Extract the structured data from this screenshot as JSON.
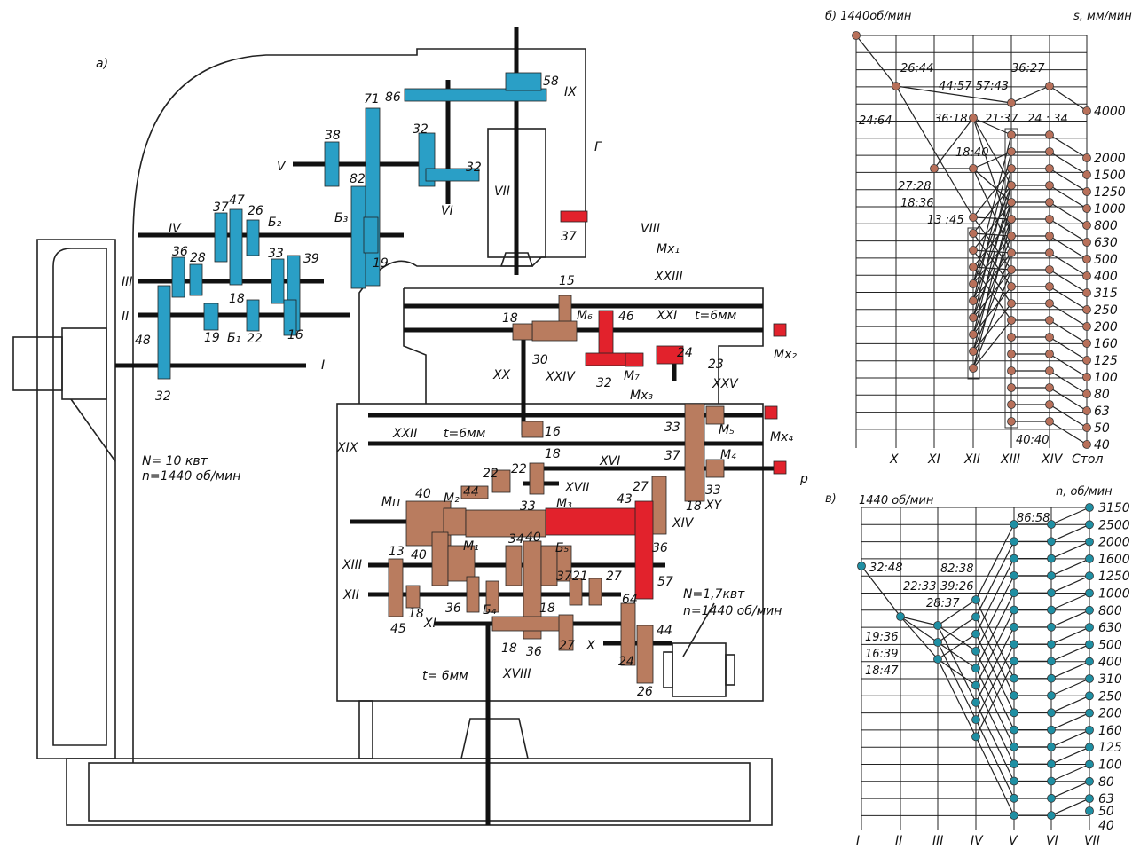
{
  "colors": {
    "spindle_drive": "#2a9fc6",
    "feed_drive": "#b97c5f",
    "rapid_traverse": "#e2222c",
    "lines": "#111111"
  },
  "scheme_labels": [
    "а)",
    "86",
    "58",
    "71",
    "38",
    "32",
    "32",
    "V",
    "82",
    "VI",
    "VII",
    "IX",
    "Г",
    "VIII",
    "37",
    "Mx₁",
    "IV",
    "37",
    "47",
    "26",
    "Б₂",
    "Б₃",
    "19",
    "36",
    "28",
    "33",
    "39",
    "III",
    "18",
    "II",
    "19",
    "Б₁",
    "22",
    "16",
    "48",
    "32",
    "I",
    "N= 10 квт",
    "n=1440 об/мин",
    "XXIII",
    "15",
    "18",
    "M₆",
    "46",
    "XXI",
    "t=6мм",
    "30",
    "XXIV",
    "24",
    "23",
    "32",
    "M₇",
    "XX",
    "XXV",
    "Mx₃",
    "Mx₂",
    "XXII",
    "t=6мм",
    "16",
    "XIX",
    "18",
    "33",
    "M₅",
    "Mx₄",
    "XVI",
    "37",
    "M₄",
    "22",
    "22",
    "XVII",
    "44",
    "27",
    "33",
    "p",
    "40",
    "M₂",
    "Mп",
    "33",
    "M₃",
    "43",
    "18",
    "XY",
    "XIV",
    "34",
    "40",
    "Б₅",
    "36",
    "13",
    "40",
    "M₁",
    "XIII",
    "37",
    "21",
    "27",
    "57",
    "N=1,7квт",
    "n=1440 об/мин",
    "XII",
    "64",
    "18",
    "36",
    "Б₄",
    "18",
    "XI",
    "45",
    "X",
    "44",
    "18",
    "36",
    "27",
    "24",
    "t= 6мм",
    "XVIII",
    "26"
  ],
  "feed_chart": {
    "title": "б) 1440об/мин",
    "unit": "s, мм/мин",
    "shafts": [
      "X",
      "XI",
      "XII",
      "XIII",
      "XIV",
      "Стол"
    ],
    "values": [
      "4000",
      "2000",
      "1500",
      "1250",
      "1000",
      "800",
      "630",
      "500",
      "400",
      "315",
      "250",
      "200",
      "160",
      "125",
      "100",
      "80",
      "63",
      "50",
      "40"
    ],
    "ratios": [
      "26:44",
      "44:57 57:43",
      "36:27",
      "24:64",
      "36:18",
      "21:37",
      "24 : 34",
      "18:40",
      "27:28",
      "18:36",
      "13 :45",
      "40:40"
    ]
  },
  "speed_chart": {
    "title": "в)",
    "input": "1440 об/мин",
    "unit": "n, об/мин",
    "shafts": [
      "I",
      "II",
      "III",
      "IV",
      "V",
      "VI",
      "VII"
    ],
    "values": [
      "3150",
      "2500",
      "2000",
      "1600",
      "1250",
      "1000",
      "800",
      "630",
      "500",
      "400",
      "310",
      "250",
      "200",
      "160",
      "125",
      "100",
      "80",
      "63",
      "50",
      "40"
    ],
    "ratios": [
      "86:58",
      "32:48",
      "82:38",
      "22:33",
      "39:26",
      "28:37",
      "19:36",
      "16:39",
      "18:47"
    ]
  }
}
